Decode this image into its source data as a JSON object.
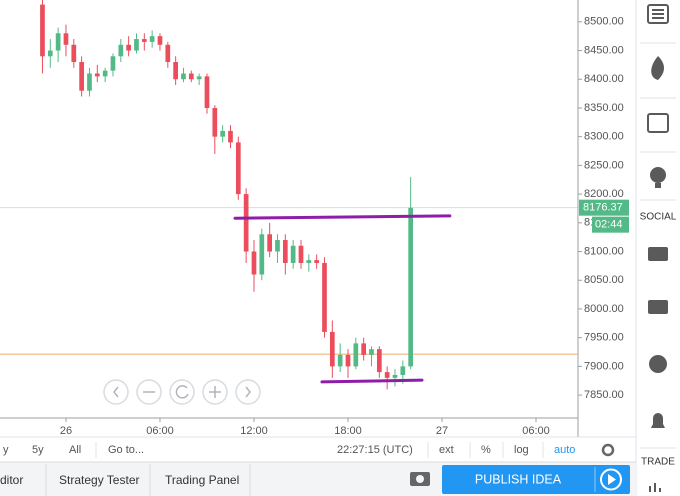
{
  "chart_data": {
    "type": "candlestick",
    "up_color": "#53b987",
    "down_color": "#eb4d5c",
    "candles": {
      "x": [
        -1.5,
        -1,
        -0.5,
        0,
        0.5,
        1,
        1.5,
        2,
        2.5,
        3,
        3.5,
        4,
        4.5,
        5,
        5.5,
        6,
        6.5,
        7,
        7.5,
        8,
        8.5,
        9,
        9.5,
        10,
        10.5,
        11,
        11.5,
        12,
        12.5,
        13,
        13.5,
        14,
        14.5,
        15,
        15.5,
        16,
        16.5,
        17,
        17.5,
        18,
        18.5,
        19,
        19.5,
        20,
        20.5,
        21,
        21.5,
        22
      ],
      "open": [
        8530,
        8440,
        8450,
        8480,
        8460,
        8430,
        8380,
        8410,
        8405,
        8415,
        8440,
        8460,
        8450,
        8470,
        8465,
        8475,
        8460,
        8430,
        8400,
        8410,
        8400,
        8405,
        8350,
        8300,
        8310,
        8290,
        8200,
        8100,
        8060,
        8130,
        8100,
        8120,
        8080,
        8110,
        8080,
        8085,
        8080,
        7960,
        7900,
        7920,
        7900,
        7940,
        7920,
        7930,
        7890,
        7880,
        7885,
        7900
      ],
      "high": [
        8540,
        8470,
        8490,
        8495,
        8470,
        8440,
        8420,
        8425,
        8420,
        8445,
        8470,
        8475,
        8480,
        8480,
        8485,
        8480,
        8465,
        8440,
        8420,
        8415,
        8410,
        8410,
        8355,
        8320,
        8320,
        8300,
        8210,
        8120,
        8140,
        8150,
        8130,
        8130,
        8120,
        8120,
        8095,
        8095,
        8090,
        7980,
        7940,
        7930,
        7950,
        7950,
        7935,
        7935,
        7900,
        7895,
        7910,
        8230
      ],
      "low": [
        8410,
        8420,
        8430,
        8440,
        8420,
        8370,
        8370,
        8395,
        8395,
        8405,
        8430,
        8440,
        8445,
        8450,
        8455,
        8450,
        8420,
        8390,
        8395,
        8395,
        8390,
        8340,
        8270,
        8290,
        8280,
        8190,
        8080,
        8030,
        8050,
        8090,
        8080,
        8060,
        8070,
        8070,
        8065,
        8070,
        7950,
        7880,
        7890,
        7880,
        7895,
        7910,
        7900,
        7880,
        7860,
        7865,
        7870,
        7895
      ],
      "close": [
        8440,
        8450,
        8480,
        8460,
        8430,
        8380,
        8410,
        8405,
        8415,
        8440,
        8460,
        8450,
        8470,
        8465,
        8475,
        8460,
        8430,
        8400,
        8410,
        8400,
        8405,
        8350,
        8300,
        8310,
        8290,
        8200,
        8100,
        8060,
        8130,
        8100,
        8120,
        8080,
        8110,
        8080,
        8085,
        8080,
        7960,
        7900,
        7920,
        7900,
        7940,
        7920,
        7930,
        7890,
        7880,
        7885,
        7900,
        8176
      ]
    },
    "xlim": [
      -4.21,
      32.68
    ],
    "xticks": [
      {
        "value": 0,
        "label": "26"
      },
      {
        "value": 6,
        "label": "06:00"
      },
      {
        "value": 12,
        "label": "12:00"
      },
      {
        "value": 18,
        "label": "18:00"
      },
      {
        "value": 24,
        "label": "27"
      },
      {
        "value": 30,
        "label": "06:00"
      }
    ],
    "ylim": [
      7777,
      8538
    ],
    "yticks": [
      {
        "value": 8500,
        "label": "8500.00"
      },
      {
        "value": 8450,
        "label": "8450.00"
      },
      {
        "value": 8400,
        "label": "8400.00"
      },
      {
        "value": 8350,
        "label": "8350.00"
      },
      {
        "value": 8300,
        "label": "8300.00"
      },
      {
        "value": 8250,
        "label": "8250.00"
      },
      {
        "value": 8200,
        "label": "8200.00"
      },
      {
        "value": 8150,
        "label": "8150.00"
      },
      {
        "value": 8100,
        "label": "8100.00"
      },
      {
        "value": 8050,
        "label": "8050.00"
      },
      {
        "value": 8000,
        "label": "8000.00"
      },
      {
        "value": 7950,
        "label": "7950.00"
      },
      {
        "value": 7900,
        "label": "7900.00"
      },
      {
        "value": 7850,
        "label": "7850.00"
      }
    ],
    "last_price": 8176.37,
    "countdown": "02:44",
    "horizontal_line": {
      "y": 7921,
      "color": "#f5c9a0"
    },
    "trend_lines": [
      {
        "x": [
          10.79,
          24.5
        ],
        "y": [
          8158,
          8162
        ],
        "color": "#8e1ea8"
      },
      {
        "x": [
          16.34,
          22.72
        ],
        "y": [
          7873,
          7876
        ],
        "color": "#8e1ea8"
      }
    ]
  },
  "toolbar": {
    "ranges": [
      "y",
      "5y",
      "All"
    ],
    "goto": "Go to...",
    "clock": "22:27:15 (UTC)",
    "options": [
      "ext",
      "%",
      "log",
      "auto"
    ]
  },
  "tabs": [
    "ditor",
    "Strategy Tester",
    "Trading Panel"
  ],
  "publish": "PUBLISH IDEA",
  "sidebar": {
    "social": "SOCIAL",
    "trade": "TRADE"
  }
}
